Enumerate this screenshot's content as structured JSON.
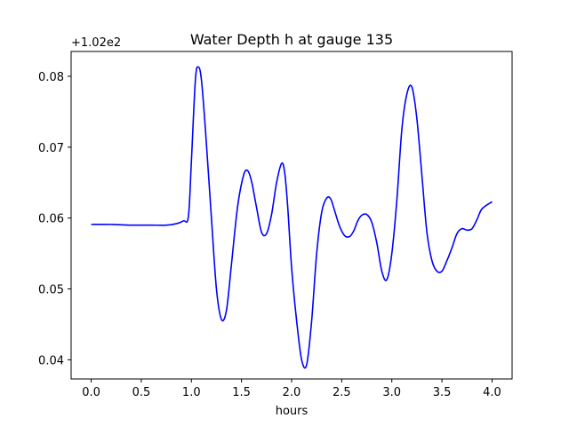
{
  "chart_data": {
    "type": "line",
    "title": "Water Depth h at gauge 135",
    "xlabel": "hours",
    "ylabel": "",
    "offset_label": "+1.02e2",
    "xlim": [
      -0.2,
      4.2
    ],
    "ylim": [
      0.0373,
      0.0835
    ],
    "x_ticks": [
      0.0,
      0.5,
      1.0,
      1.5,
      2.0,
      2.5,
      3.0,
      3.5,
      4.0
    ],
    "x_tick_labels": [
      "0.0",
      "0.5",
      "1.0",
      "1.5",
      "2.0",
      "2.5",
      "3.0",
      "3.5",
      "4.0"
    ],
    "y_ticks": [
      0.04,
      0.05,
      0.06,
      0.07,
      0.08
    ],
    "y_tick_labels": [
      "0.04",
      "0.05",
      "0.06",
      "0.07",
      "0.08"
    ],
    "grid": false,
    "series": [
      {
        "color": "#0000ff",
        "x": [
          0.0,
          0.2,
          0.4,
          0.6,
          0.75,
          0.85,
          0.92,
          0.97,
          1.0,
          1.04,
          1.07,
          1.1,
          1.14,
          1.2,
          1.25,
          1.3,
          1.35,
          1.4,
          1.46,
          1.52,
          1.56,
          1.6,
          1.65,
          1.7,
          1.75,
          1.8,
          1.85,
          1.9,
          1.93,
          1.96,
          2.0,
          2.05,
          2.1,
          2.15,
          2.2,
          2.25,
          2.3,
          2.35,
          2.39,
          2.43,
          2.48,
          2.53,
          2.58,
          2.62,
          2.66,
          2.7,
          2.75,
          2.8,
          2.85,
          2.9,
          2.95,
          3.0,
          3.05,
          3.1,
          3.15,
          3.2,
          3.25,
          3.3,
          3.35,
          3.4,
          3.45,
          3.5,
          3.55,
          3.6,
          3.65,
          3.7,
          3.75,
          3.8,
          3.85,
          3.9,
          4.0
        ],
        "y": [
          0.0591,
          0.0591,
          0.059,
          0.059,
          0.059,
          0.0592,
          0.0596,
          0.0602,
          0.068,
          0.0795,
          0.0813,
          0.0795,
          0.0725,
          0.06,
          0.05,
          0.0457,
          0.047,
          0.0535,
          0.0615,
          0.066,
          0.0667,
          0.0652,
          0.0615,
          0.058,
          0.0578,
          0.0605,
          0.065,
          0.0677,
          0.0665,
          0.0618,
          0.053,
          0.0455,
          0.04,
          0.0393,
          0.0455,
          0.055,
          0.0608,
          0.0628,
          0.0627,
          0.061,
          0.0588,
          0.0575,
          0.0574,
          0.0582,
          0.0596,
          0.0604,
          0.0605,
          0.0594,
          0.0565,
          0.0525,
          0.0513,
          0.055,
          0.0625,
          0.0725,
          0.0775,
          0.0785,
          0.074,
          0.066,
          0.058,
          0.054,
          0.0525,
          0.0525,
          0.054,
          0.0558,
          0.0578,
          0.0585,
          0.0583,
          0.0585,
          0.0598,
          0.0613,
          0.0623
        ]
      }
    ]
  }
}
